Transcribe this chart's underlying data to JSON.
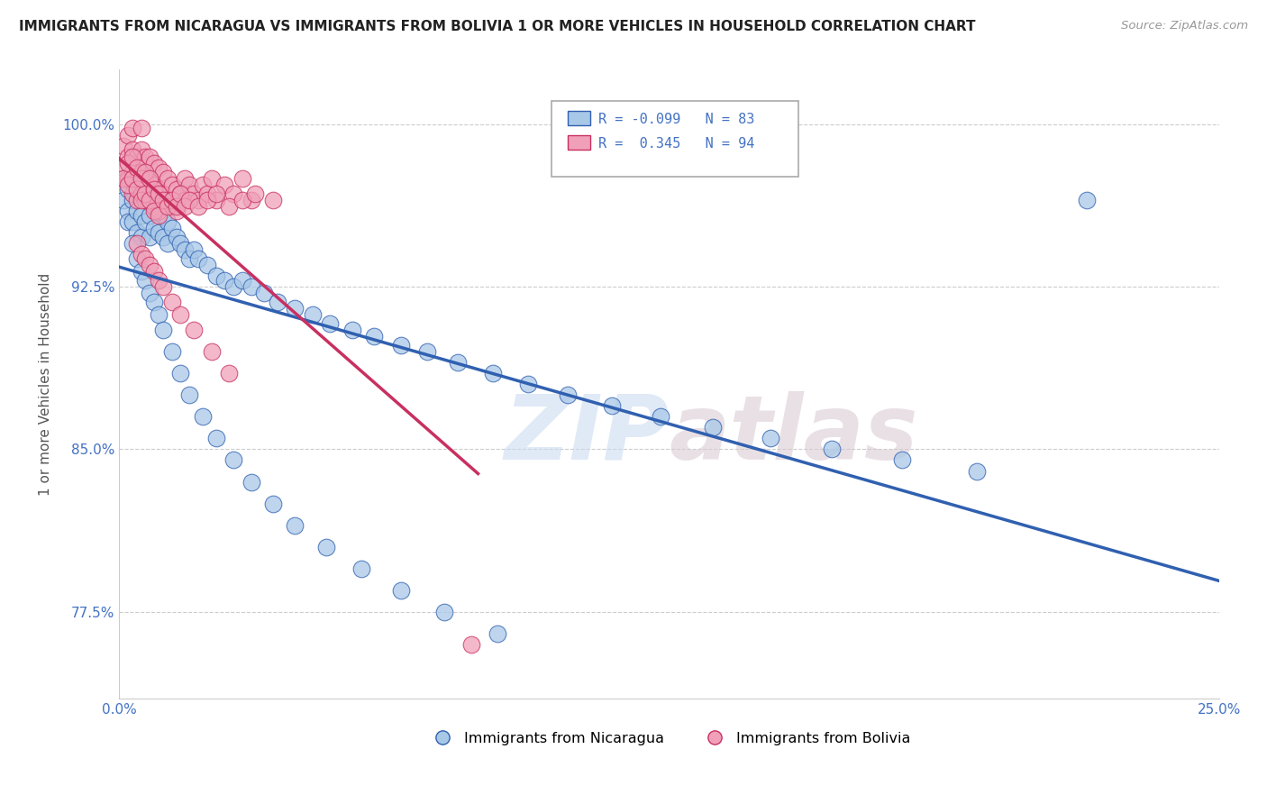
{
  "title": "IMMIGRANTS FROM NICARAGUA VS IMMIGRANTS FROM BOLIVIA 1 OR MORE VEHICLES IN HOUSEHOLD CORRELATION CHART",
  "source": "Source: ZipAtlas.com",
  "ylabel": "1 or more Vehicles in Household",
  "ytick_labels": [
    "77.5%",
    "85.0%",
    "92.5%",
    "100.0%"
  ],
  "ytick_values": [
    0.775,
    0.85,
    0.925,
    1.0
  ],
  "xlim": [
    0.0,
    0.25
  ],
  "ylim": [
    0.735,
    1.025
  ],
  "legend_nicaragua": "Immigrants from Nicaragua",
  "legend_bolivia": "Immigrants from Bolivia",
  "R_nicaragua": -0.099,
  "N_nicaragua": 83,
  "R_bolivia": 0.345,
  "N_bolivia": 94,
  "color_nicaragua": "#a8c8e8",
  "color_nicaragua_line": "#3060b0",
  "color_bolivia": "#f0a0b8",
  "color_bolivia_line": "#c83060",
  "watermark_zip": "ZIP",
  "watermark_atlas": "atlas",
  "nicaragua_x": [
    0.001,
    0.001,
    0.002,
    0.002,
    0.002,
    0.003,
    0.003,
    0.003,
    0.004,
    0.004,
    0.004,
    0.005,
    0.005,
    0.005,
    0.006,
    0.006,
    0.007,
    0.007,
    0.007,
    0.008,
    0.008,
    0.009,
    0.009,
    0.01,
    0.01,
    0.011,
    0.011,
    0.012,
    0.013,
    0.014,
    0.015,
    0.016,
    0.017,
    0.018,
    0.02,
    0.022,
    0.024,
    0.026,
    0.028,
    0.03,
    0.033,
    0.036,
    0.04,
    0.044,
    0.048,
    0.053,
    0.058,
    0.064,
    0.07,
    0.077,
    0.085,
    0.093,
    0.102,
    0.112,
    0.123,
    0.135,
    0.148,
    0.162,
    0.178,
    0.195,
    0.003,
    0.004,
    0.005,
    0.006,
    0.007,
    0.008,
    0.009,
    0.01,
    0.012,
    0.014,
    0.016,
    0.019,
    0.022,
    0.026,
    0.03,
    0.035,
    0.04,
    0.047,
    0.055,
    0.064,
    0.074,
    0.086,
    0.22
  ],
  "nicaragua_y": [
    0.965,
    0.975,
    0.97,
    0.96,
    0.955,
    0.975,
    0.965,
    0.955,
    0.97,
    0.96,
    0.95,
    0.968,
    0.958,
    0.948,
    0.965,
    0.955,
    0.968,
    0.958,
    0.948,
    0.962,
    0.952,
    0.96,
    0.95,
    0.958,
    0.948,
    0.955,
    0.945,
    0.952,
    0.948,
    0.945,
    0.942,
    0.938,
    0.942,
    0.938,
    0.935,
    0.93,
    0.928,
    0.925,
    0.928,
    0.925,
    0.922,
    0.918,
    0.915,
    0.912,
    0.908,
    0.905,
    0.902,
    0.898,
    0.895,
    0.89,
    0.885,
    0.88,
    0.875,
    0.87,
    0.865,
    0.86,
    0.855,
    0.85,
    0.845,
    0.84,
    0.945,
    0.938,
    0.932,
    0.928,
    0.922,
    0.918,
    0.912,
    0.905,
    0.895,
    0.885,
    0.875,
    0.865,
    0.855,
    0.845,
    0.835,
    0.825,
    0.815,
    0.805,
    0.795,
    0.785,
    0.775,
    0.765,
    0.965
  ],
  "bolivia_x": [
    0.001,
    0.001,
    0.002,
    0.002,
    0.002,
    0.003,
    0.003,
    0.003,
    0.003,
    0.004,
    0.004,
    0.004,
    0.005,
    0.005,
    0.005,
    0.005,
    0.006,
    0.006,
    0.006,
    0.007,
    0.007,
    0.007,
    0.008,
    0.008,
    0.008,
    0.009,
    0.009,
    0.009,
    0.01,
    0.01,
    0.011,
    0.011,
    0.012,
    0.012,
    0.013,
    0.013,
    0.014,
    0.015,
    0.015,
    0.016,
    0.017,
    0.018,
    0.019,
    0.02,
    0.021,
    0.022,
    0.024,
    0.026,
    0.028,
    0.03,
    0.001,
    0.002,
    0.002,
    0.003,
    0.003,
    0.004,
    0.004,
    0.005,
    0.005,
    0.006,
    0.006,
    0.007,
    0.007,
    0.008,
    0.008,
    0.009,
    0.009,
    0.01,
    0.011,
    0.012,
    0.013,
    0.014,
    0.015,
    0.016,
    0.018,
    0.02,
    0.022,
    0.025,
    0.028,
    0.031,
    0.035,
    0.004,
    0.005,
    0.006,
    0.007,
    0.008,
    0.009,
    0.01,
    0.012,
    0.014,
    0.017,
    0.021,
    0.025,
    0.08
  ],
  "bolivia_y": [
    0.98,
    0.99,
    0.985,
    0.975,
    0.995,
    0.988,
    0.978,
    0.968,
    0.998,
    0.985,
    0.975,
    0.965,
    0.988,
    0.978,
    0.968,
    0.998,
    0.985,
    0.975,
    0.965,
    0.985,
    0.975,
    0.965,
    0.982,
    0.972,
    0.962,
    0.98,
    0.97,
    0.96,
    0.978,
    0.968,
    0.975,
    0.965,
    0.972,
    0.962,
    0.97,
    0.96,
    0.968,
    0.975,
    0.965,
    0.972,
    0.968,
    0.965,
    0.972,
    0.968,
    0.975,
    0.965,
    0.972,
    0.968,
    0.975,
    0.965,
    0.975,
    0.982,
    0.972,
    0.985,
    0.975,
    0.98,
    0.97,
    0.975,
    0.965,
    0.978,
    0.968,
    0.975,
    0.965,
    0.97,
    0.96,
    0.968,
    0.958,
    0.965,
    0.962,
    0.965,
    0.962,
    0.968,
    0.962,
    0.965,
    0.962,
    0.965,
    0.968,
    0.962,
    0.965,
    0.968,
    0.965,
    0.945,
    0.94,
    0.938,
    0.935,
    0.932,
    0.928,
    0.925,
    0.918,
    0.912,
    0.905,
    0.895,
    0.885,
    0.76
  ]
}
